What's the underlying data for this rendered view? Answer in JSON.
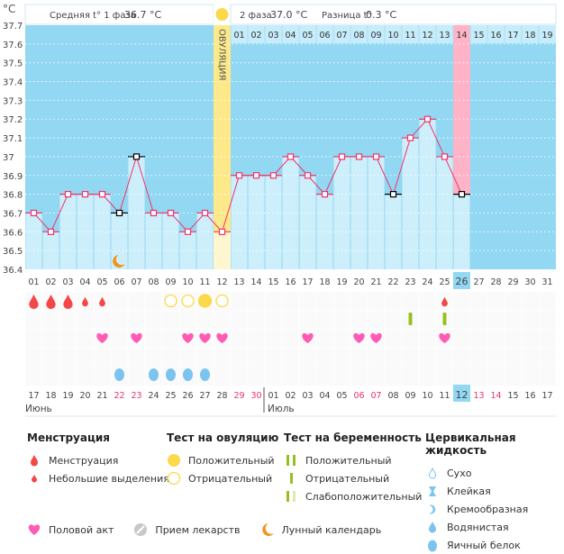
{
  "chart_data": {
    "type": "line",
    "unit_label": "°C",
    "ylim": [
      36.4,
      37.7
    ],
    "yticks": [
      "36.4",
      "36.5",
      "36.6",
      "36.7",
      "36.8",
      "36.9",
      "37",
      "37.1",
      "37.2",
      "37.3",
      "37.4",
      "37.5",
      "37.6",
      "37.7"
    ],
    "cycle_days": [
      "01",
      "02",
      "03",
      "04",
      "05",
      "06",
      "07",
      "08",
      "09",
      "10",
      "11",
      "12",
      "13",
      "14",
      "15",
      "16",
      "17",
      "18",
      "19",
      "20",
      "21",
      "22",
      "23",
      "24",
      "25",
      "26",
      "27",
      "28",
      "29",
      "30",
      "31"
    ],
    "current_cycle_day": "26",
    "temperatures": [
      36.7,
      36.6,
      36.8,
      36.8,
      36.8,
      36.7,
      37.0,
      36.7,
      36.7,
      36.6,
      36.7,
      36.6,
      36.9,
      36.9,
      36.9,
      37.0,
      36.9,
      36.8,
      37.0,
      37.0,
      37.0,
      36.8,
      37.1,
      37.2,
      37.0,
      36.8
    ],
    "excluded_points_days": [
      6,
      7,
      22,
      26
    ],
    "ovulation_day": 12,
    "ovulation_label": "ОВУЛЯЦИЯ",
    "phase2_days": [
      "01",
      "02",
      "03",
      "04",
      "05",
      "06",
      "07",
      "08",
      "09",
      "10",
      "11",
      "12",
      "13",
      "14",
      "15",
      "16",
      "17",
      "18",
      "19"
    ],
    "phase2_highlight": "14",
    "moon_day": 6,
    "dates": [
      "17",
      "18",
      "19",
      "20",
      "21",
      "22",
      "23",
      "24",
      "25",
      "26",
      "27",
      "28",
      "29",
      "30",
      "01",
      "02",
      "03",
      "04",
      "05",
      "06",
      "07",
      "08",
      "09",
      "10",
      "11",
      "12",
      "13",
      "14",
      "15",
      "16",
      "17"
    ],
    "weekend_dates_idx": [
      6,
      7,
      13,
      14,
      20,
      21,
      27,
      28
    ],
    "today_date_idx": 26,
    "months": [
      "Июнь",
      "Июль"
    ],
    "menstruation": {
      "1": "heavy",
      "2": "heavy",
      "3": "heavy",
      "4": "light",
      "5": "light",
      "25": "light"
    },
    "ovulation_tests": {
      "9": "negative",
      "10": "negative",
      "11": "positive",
      "12": "negative"
    },
    "pregnancy_tests": {
      "23": "negative",
      "25": "negative"
    },
    "intercourse_days": [
      5,
      7,
      10,
      11,
      12,
      17,
      20,
      21,
      25
    ],
    "cervical_fluid": {
      "6": "egg-white",
      "8": "egg-white",
      "9": "egg-white",
      "10": "egg-white",
      "11": "egg-white"
    }
  },
  "header": {
    "phase1_label": "Средняя t° 1 фаза",
    "phase1_value": "36.7 °C",
    "phase2_label": "2 фаза",
    "phase2_value": "37.0 °C",
    "diff_label": "Разница t°",
    "diff_value": "0.3 °C"
  },
  "legend": {
    "menstruation": {
      "title": "Менструация",
      "items": [
        "Менструация",
        "Небольшие выделения"
      ]
    },
    "ovulation_test": {
      "title": "Тест на овуляцию",
      "items": [
        "Положительный",
        "Отрицательный"
      ]
    },
    "pregnancy_test": {
      "title": "Тест на беременность",
      "items": [
        "Положительный",
        "Отрицательный",
        "Слабоположительный"
      ]
    },
    "cervical_fluid": {
      "title": "Цервикальная жидкость",
      "items": [
        "Сухо",
        "Клейкая",
        "Кремообразная",
        "Водянистая",
        "Яичный белок"
      ]
    },
    "other": [
      "Половой акт",
      "Прием лекарств",
      "Лунный календарь"
    ]
  },
  "colors": {
    "bg_dark": "#92d8f2",
    "bar": "#cdeefb",
    "line": "#f0336a",
    "ovulation": "#fde98a",
    "highlight": "#ffb3c6",
    "blood": "#f44848",
    "heart": "#ff5bb5",
    "fluid": "#7cc4ef",
    "test": "#95c11f",
    "sun": "#fcd94a",
    "moon": "#f3931b"
  }
}
